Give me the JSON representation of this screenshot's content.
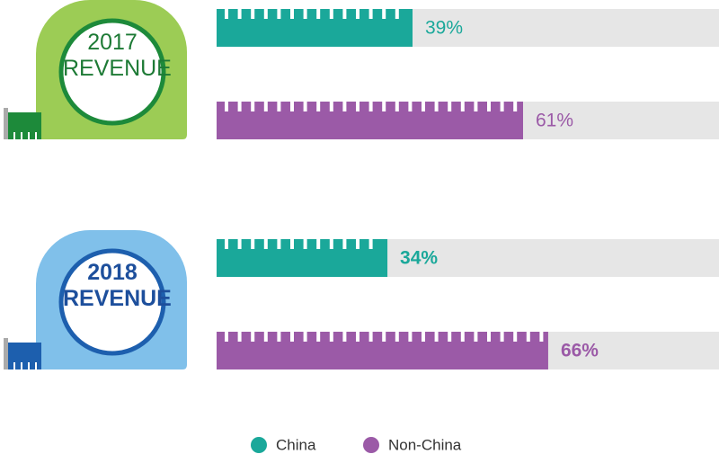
{
  "chart_data": {
    "type": "hbar",
    "categories": [
      "2017 REVENUE",
      "2018 REVENUE"
    ],
    "series": [
      {
        "name": "China",
        "color": "#1aa89a",
        "values": [
          39,
          34
        ],
        "value_labels": [
          "39%",
          "34%"
        ]
      },
      {
        "name": "Non-China",
        "color": "#9b5aa7",
        "values": [
          61,
          66
        ],
        "value_labels": [
          "61%",
          "66%"
        ]
      }
    ],
    "xlim": [
      0,
      100
    ]
  }
}
